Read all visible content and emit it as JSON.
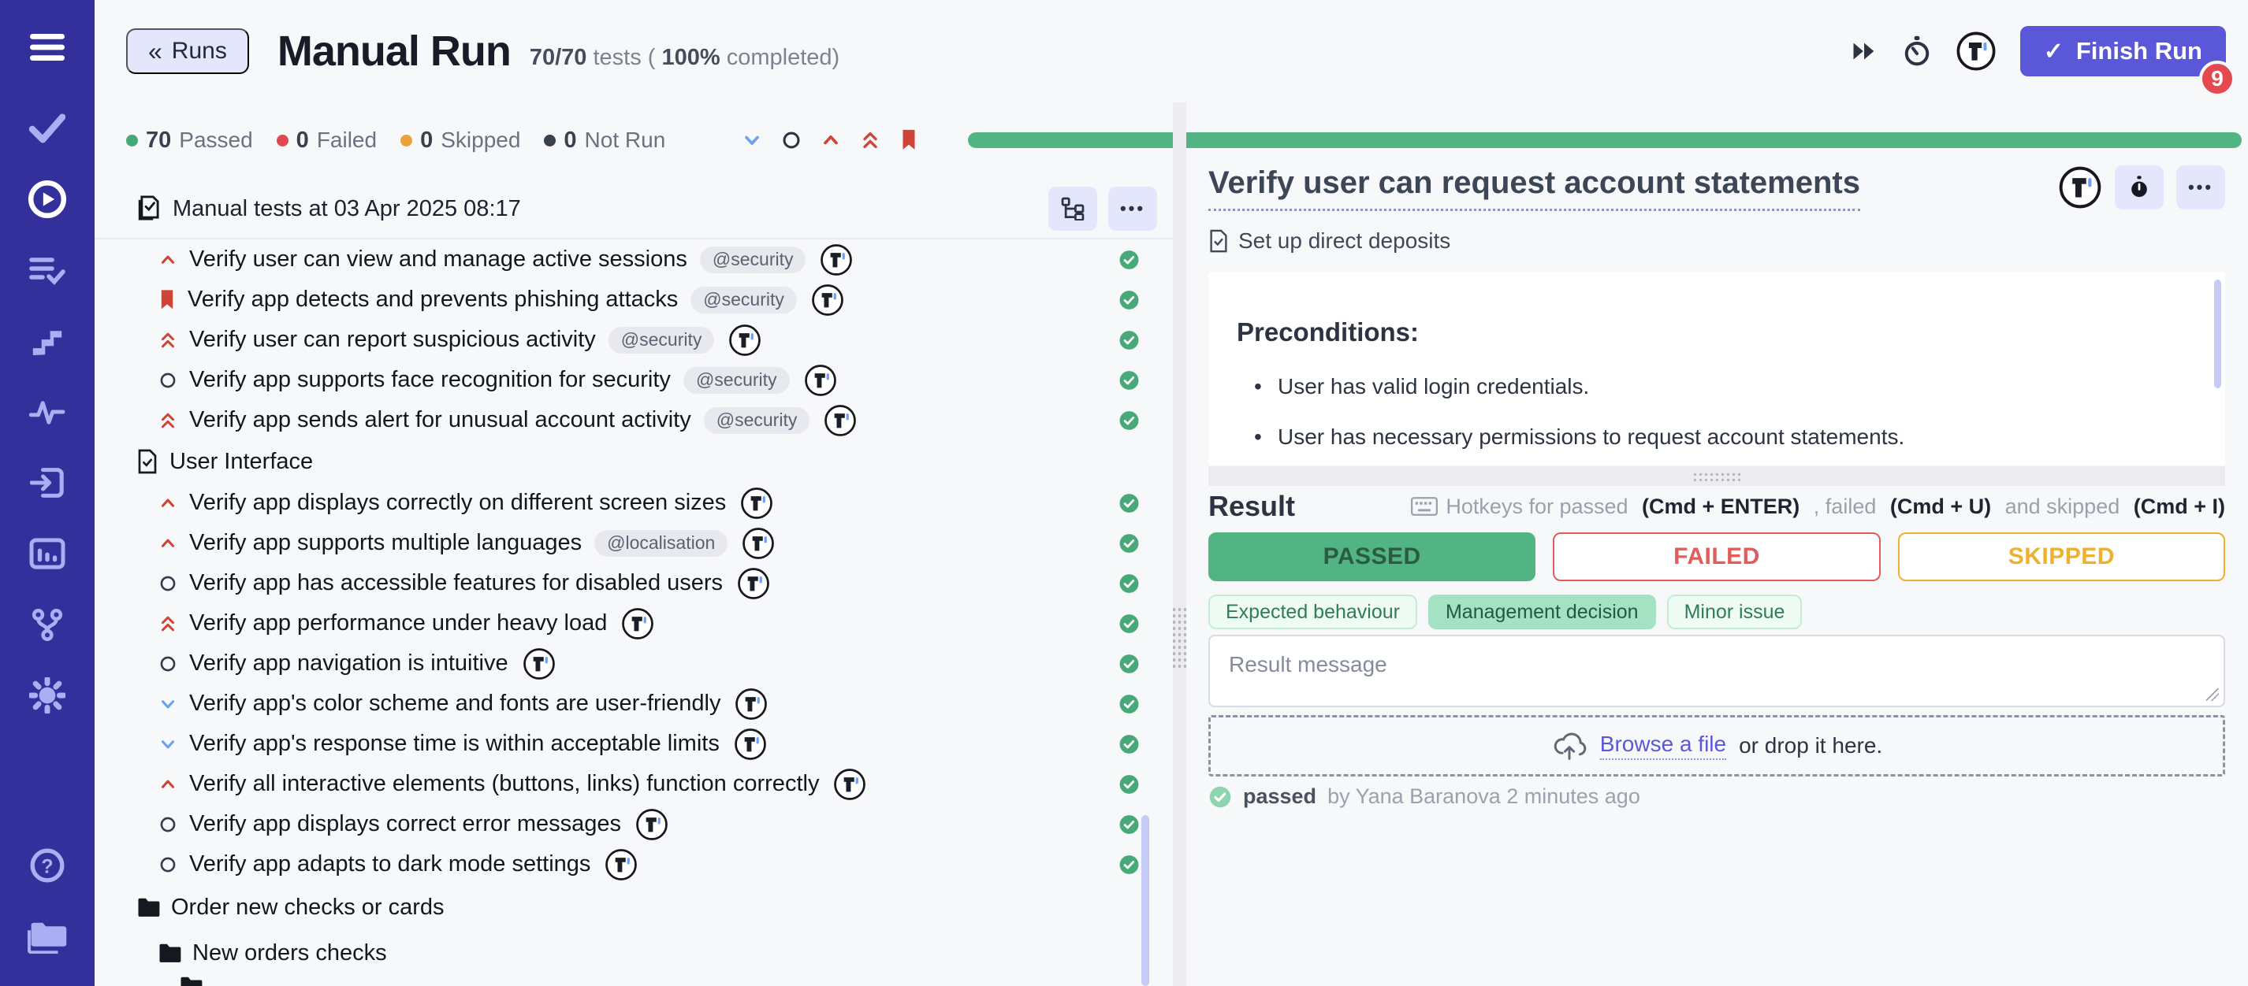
{
  "topbar": {
    "back_label": "Runs",
    "back_chevron": "«",
    "title": "Manual Run",
    "tests_count": "70/70",
    "tests_t1": "tests (",
    "tests_pct": "100%",
    "tests_t2": "completed)",
    "finish_label": "Finish Run",
    "finish_check": "✓",
    "badge": "9"
  },
  "summary": {
    "passed": {
      "count": "70",
      "label": "Passed",
      "color": "#44a878"
    },
    "failed": {
      "count": "0",
      "label": "Failed",
      "color": "#e0494f"
    },
    "skipped": {
      "count": "0",
      "label": "Skipped",
      "color": "#eba23b"
    },
    "notrun": {
      "count": "0",
      "label": "Not Run",
      "color": "#39414f"
    },
    "progress_pct": 100,
    "progress_color": "#53b483"
  },
  "left_panel": {
    "header": "Manual tests at 03 Apr 2025 08:17",
    "more_label": "•••",
    "items": [
      {
        "kind": "test",
        "icon": "priority-high",
        "title": "Verify user can view and manage active sessions",
        "tag": "@security",
        "logo": true,
        "status": "passed"
      },
      {
        "kind": "test",
        "icon": "bookmark",
        "title": "Verify app detects and prevents phishing attacks",
        "tag": "@security",
        "logo": true,
        "status": "passed"
      },
      {
        "kind": "test",
        "icon": "priority-highest",
        "title": "Verify user can report suspicious activity",
        "tag": "@security",
        "logo": true,
        "status": "passed"
      },
      {
        "kind": "test",
        "icon": "priority-none",
        "title": "Verify app supports face recognition for security",
        "tag": "@security",
        "logo": true,
        "status": "passed"
      },
      {
        "kind": "test",
        "icon": "priority-highest",
        "title": "Verify app sends alert for unusual account activity",
        "tag": "@security",
        "logo": true,
        "status": "passed"
      },
      {
        "kind": "section",
        "title": "User Interface"
      },
      {
        "kind": "test",
        "icon": "priority-high",
        "title": "Verify app displays correctly on different screen sizes",
        "tag": null,
        "logo": true,
        "status": "passed"
      },
      {
        "kind": "test",
        "icon": "priority-high",
        "title": "Verify app supports multiple languages",
        "tag": "@localisation",
        "logo": true,
        "status": "passed"
      },
      {
        "kind": "test",
        "icon": "priority-none",
        "title": "Verify app has accessible features for disabled users",
        "tag": null,
        "logo": true,
        "status": "passed"
      },
      {
        "kind": "test",
        "icon": "priority-highest",
        "title": "Verify app performance under heavy load",
        "tag": null,
        "logo": true,
        "status": "passed"
      },
      {
        "kind": "test",
        "icon": "priority-none",
        "title": "Verify app navigation is intuitive",
        "tag": null,
        "logo": true,
        "status": "passed"
      },
      {
        "kind": "test",
        "icon": "priority-low",
        "title": "Verify app's color scheme and fonts are user-friendly",
        "tag": null,
        "logo": true,
        "status": "passed"
      },
      {
        "kind": "test",
        "icon": "priority-low",
        "title": "Verify app's response time is within acceptable limits",
        "tag": null,
        "logo": true,
        "status": "passed"
      },
      {
        "kind": "test",
        "icon": "priority-high",
        "title": "Verify all interactive elements (buttons, links) function correctly",
        "tag": null,
        "logo": true,
        "status": "passed"
      },
      {
        "kind": "test",
        "icon": "priority-none",
        "title": "Verify app displays correct error messages",
        "tag": null,
        "logo": true,
        "status": "passed"
      },
      {
        "kind": "test",
        "icon": "priority-none",
        "title": "Verify app adapts to dark mode settings",
        "tag": null,
        "logo": true,
        "status": "passed"
      },
      {
        "kind": "folder",
        "indent": 0,
        "title": "Order new checks or cards"
      },
      {
        "kind": "folder",
        "indent": 1,
        "title": "New orders checks"
      },
      {
        "kind": "folder-partial",
        "indent": 2,
        "title": ""
      }
    ]
  },
  "right_panel": {
    "title": "Verify user can request account statements",
    "more_label": "•••",
    "subtitle": "Set up direct deposits",
    "preconditions": {
      "heading": "Preconditions:",
      "bullets": [
        "User has valid login credentials.",
        "User has necessary permissions to request account statements."
      ]
    },
    "result": {
      "heading": "Result",
      "hotkeys": {
        "t1": "Hotkeys for passed ",
        "b1": "(Cmd + ENTER)",
        "t2": " , failed ",
        "b2": "(Cmd + U)",
        "t3": " and skipped ",
        "b3": "(Cmd + I)"
      },
      "verdicts": [
        {
          "label": "PASSED",
          "style": "v-passed"
        },
        {
          "label": "FAILED",
          "style": "v-failed"
        },
        {
          "label": "SKIPPED",
          "style": "v-skipped"
        }
      ],
      "tags": [
        {
          "label": "Expected behaviour",
          "selected": false
        },
        {
          "label": "Management decision",
          "selected": true
        },
        {
          "label": "Minor issue",
          "selected": false
        }
      ],
      "message_placeholder": "Result message",
      "upload": {
        "browse": "Browse a file",
        "rest": "or drop it here."
      },
      "status": {
        "label": "passed",
        "rest": "by Yana Baranova 2 minutes ago"
      }
    }
  }
}
